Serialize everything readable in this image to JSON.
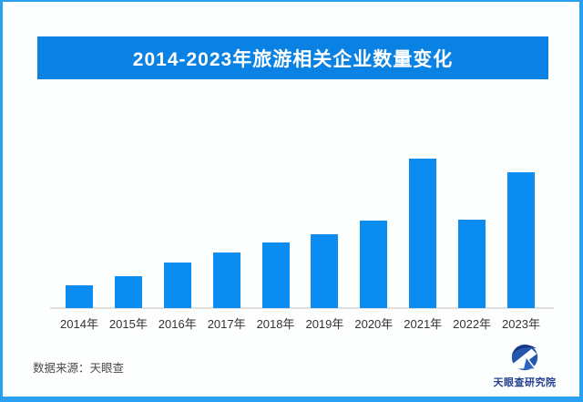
{
  "header": {
    "title": "2014-2023年旅游相关企业数量变化"
  },
  "chart_data": {
    "type": "bar",
    "title": "2014-2023年旅游相关企业数量变化",
    "categories": [
      "2014年",
      "2015年",
      "2016年",
      "2017年",
      "2018年",
      "2019年",
      "2020年",
      "2021年",
      "2022年",
      "2023年"
    ],
    "values": [
      25,
      35,
      50,
      61,
      72,
      81,
      96,
      164,
      97,
      149
    ],
    "values_note": "relative units estimated from bar heights; no numeric axis labels shown in image",
    "xlabel": "",
    "ylabel": "",
    "ylim": [
      0,
      170
    ],
    "grid": false,
    "legend": "none",
    "bar_color": "#0a8cf0",
    "axis_line_color": "#e0e0e0"
  },
  "footer": {
    "source": "数据来源：天眼查",
    "logo_text": "天眼查研究院"
  },
  "colors": {
    "banner_blue": "#0a82e3",
    "bar_blue": "#0a8cf0",
    "border_blue": "#2aa0f2",
    "logo_navy": "#24418f",
    "label_gray": "#333333"
  }
}
